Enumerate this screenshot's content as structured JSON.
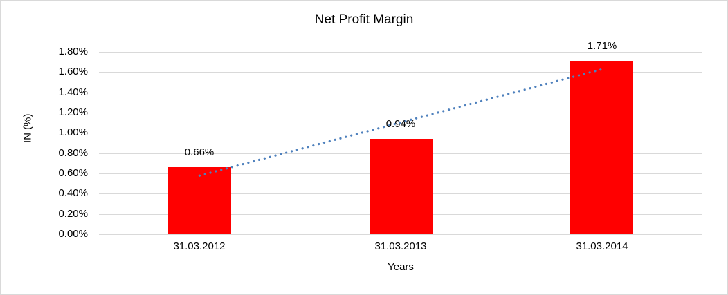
{
  "chart_data": {
    "type": "bar",
    "title": "Net Profit Margin",
    "xlabel": "Years",
    "ylabel": "IN (%)",
    "categories": [
      "31.03.2012",
      "31.03.2013",
      "31.03.2014"
    ],
    "series": [
      {
        "name": "Net Profit Margin",
        "values": [
          0.66,
          0.94,
          1.71
        ]
      }
    ],
    "data_labels": [
      "0.66%",
      "0.94%",
      "1.71%"
    ],
    "ylim": [
      0,
      1.8
    ],
    "ytick_step": 0.2,
    "ytick_labels": [
      "0.00%",
      "0.20%",
      "0.40%",
      "0.60%",
      "0.80%",
      "1.00%",
      "1.20%",
      "1.40%",
      "1.60%",
      "1.80%"
    ],
    "grid": true,
    "legend": false,
    "trendline": {
      "type": "linear",
      "style": "dotted",
      "endpoint_values": [
        0.578,
        1.628
      ]
    }
  },
  "colors": {
    "bar": "#ff0000",
    "gridline": "#d9d9d9",
    "trendline": "#4f81bd",
    "border": "#d9d9d9",
    "text": "#000000",
    "background": "#ffffff"
  }
}
